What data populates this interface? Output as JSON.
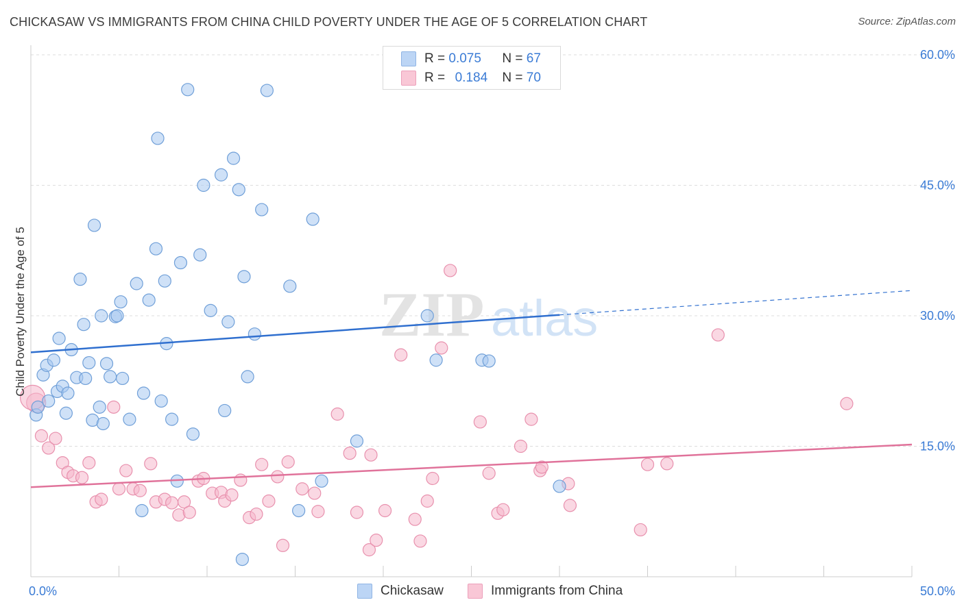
{
  "title": "CHICKASAW VS IMMIGRANTS FROM CHINA CHILD POVERTY UNDER THE AGE OF 5 CORRELATION CHART",
  "source": "Source: ZipAtlas.com",
  "legend": {
    "series1": {
      "r_label": "R =",
      "r_value": "0.075",
      "n_label": "N =",
      "n_value": "67"
    },
    "series2": {
      "r_label": "R =",
      "r_value": "0.184",
      "n_label": "N =",
      "n_value": "70"
    }
  },
  "bottom_legend": {
    "series1": "Chickasaw",
    "series2": "Immigrants from China"
  },
  "watermark": {
    "part1": "ZIP",
    "part2": "atlas"
  },
  "colors": {
    "blue_fill": "#a8c8f0",
    "blue_stroke": "#6f9fd8",
    "blue_line": "#2f6fcf",
    "pink_fill": "#f6b8cc",
    "pink_stroke": "#e890ad",
    "pink_line": "#e0729a",
    "axis_label": "#3a7bd5",
    "grid": "#dddddd"
  },
  "chart_data": {
    "type": "scatter",
    "title": "CHICKASAW VS IMMIGRANTS FROM CHINA CHILD POVERTY UNDER THE AGE OF 5 CORRELATION CHART",
    "xlabel": "",
    "ylabel": "Child Poverty Under the Age of 5",
    "xlim": [
      0,
      50
    ],
    "ylim": [
      0,
      60
    ],
    "x_tick_labels": [
      "0.0%",
      "50.0%"
    ],
    "y_ticks": [
      15,
      30,
      45,
      60
    ],
    "y_tick_labels": [
      "15.0%",
      "30.0%",
      "45.0%",
      "60.0%"
    ],
    "grid": true,
    "legend_position": "top-center",
    "series": [
      {
        "name": "Chickasaw",
        "color": "#a8c8f0",
        "trend": {
          "x": [
            0,
            30
          ],
          "y": [
            25.8,
            30.1
          ],
          "dashed_to": [
            50,
            32.9
          ]
        },
        "points": [
          [
            0.3,
            18.6
          ],
          [
            0.4,
            19.5
          ],
          [
            0.7,
            23.2
          ],
          [
            0.9,
            24.3
          ],
          [
            1.0,
            20.2
          ],
          [
            1.3,
            24.9
          ],
          [
            1.5,
            21.3
          ],
          [
            1.6,
            27.4
          ],
          [
            1.8,
            21.9
          ],
          [
            2.0,
            18.8
          ],
          [
            2.1,
            21.1
          ],
          [
            2.3,
            26.1
          ],
          [
            2.6,
            22.9
          ],
          [
            2.8,
            34.2
          ],
          [
            3.0,
            29.0
          ],
          [
            3.1,
            22.8
          ],
          [
            3.3,
            24.6
          ],
          [
            3.5,
            18.0
          ],
          [
            3.6,
            40.4
          ],
          [
            3.9,
            19.5
          ],
          [
            4.0,
            30.0
          ],
          [
            4.1,
            17.6
          ],
          [
            4.3,
            24.5
          ],
          [
            4.5,
            23.0
          ],
          [
            4.8,
            29.9
          ],
          [
            4.9,
            30.0
          ],
          [
            5.1,
            31.6
          ],
          [
            5.2,
            22.8
          ],
          [
            5.6,
            18.1
          ],
          [
            6.0,
            33.7
          ],
          [
            6.3,
            7.6
          ],
          [
            6.4,
            21.1
          ],
          [
            6.7,
            31.8
          ],
          [
            7.1,
            37.7
          ],
          [
            7.2,
            50.4
          ],
          [
            7.4,
            20.2
          ],
          [
            7.6,
            34.0
          ],
          [
            7.7,
            26.8
          ],
          [
            8.0,
            18.1
          ],
          [
            8.3,
            11.0
          ],
          [
            8.5,
            36.1
          ],
          [
            8.9,
            56.0
          ],
          [
            9.2,
            16.4
          ],
          [
            9.6,
            37.0
          ],
          [
            9.8,
            45.0
          ],
          [
            10.2,
            30.6
          ],
          [
            10.8,
            46.2
          ],
          [
            11.0,
            19.1
          ],
          [
            11.2,
            29.3
          ],
          [
            11.5,
            48.1
          ],
          [
            11.8,
            44.5
          ],
          [
            12.0,
            2.0
          ],
          [
            12.1,
            34.5
          ],
          [
            12.3,
            23.0
          ],
          [
            12.7,
            27.9
          ],
          [
            13.1,
            42.2
          ],
          [
            13.4,
            55.9
          ],
          [
            14.7,
            33.4
          ],
          [
            15.2,
            7.6
          ],
          [
            16.0,
            41.1
          ],
          [
            16.5,
            11.0
          ],
          [
            18.5,
            15.6
          ],
          [
            22.5,
            30.0
          ],
          [
            23.0,
            24.9
          ],
          [
            25.6,
            24.9
          ],
          [
            26.0,
            24.8
          ],
          [
            30.0,
            10.4
          ]
        ]
      },
      {
        "name": "Immigrants from China",
        "color": "#f6b8cc",
        "trend": {
          "x": [
            0,
            50
          ],
          "y": [
            10.3,
            15.2
          ]
        },
        "points": [
          [
            0.3,
            20.0
          ],
          [
            0.6,
            16.2
          ],
          [
            1.0,
            14.8
          ],
          [
            1.4,
            15.9
          ],
          [
            1.8,
            13.1
          ],
          [
            2.1,
            12.0
          ],
          [
            2.4,
            11.6
          ],
          [
            2.9,
            11.4
          ],
          [
            3.3,
            13.1
          ],
          [
            3.7,
            8.6
          ],
          [
            4.0,
            8.9
          ],
          [
            4.7,
            19.5
          ],
          [
            5.0,
            10.1
          ],
          [
            5.4,
            12.2
          ],
          [
            5.8,
            10.1
          ],
          [
            6.2,
            9.9
          ],
          [
            6.8,
            13.0
          ],
          [
            7.1,
            8.6
          ],
          [
            7.6,
            8.9
          ],
          [
            8.0,
            8.5
          ],
          [
            8.4,
            7.1
          ],
          [
            8.7,
            8.6
          ],
          [
            9.0,
            7.4
          ],
          [
            9.5,
            11.0
          ],
          [
            9.8,
            11.3
          ],
          [
            10.3,
            9.6
          ],
          [
            10.8,
            9.7
          ],
          [
            11.0,
            8.7
          ],
          [
            11.4,
            9.4
          ],
          [
            11.9,
            11.1
          ],
          [
            12.4,
            6.8
          ],
          [
            12.8,
            7.2
          ],
          [
            13.1,
            12.9
          ],
          [
            13.5,
            8.7
          ],
          [
            14.0,
            11.5
          ],
          [
            14.3,
            3.6
          ],
          [
            14.6,
            13.2
          ],
          [
            15.4,
            10.1
          ],
          [
            16.1,
            9.6
          ],
          [
            16.3,
            7.5
          ],
          [
            17.4,
            18.7
          ],
          [
            18.1,
            14.2
          ],
          [
            18.5,
            7.4
          ],
          [
            19.2,
            3.1
          ],
          [
            19.3,
            14.0
          ],
          [
            19.6,
            4.2
          ],
          [
            20.1,
            7.6
          ],
          [
            21.0,
            25.5
          ],
          [
            21.8,
            6.6
          ],
          [
            22.1,
            4.1
          ],
          [
            22.5,
            8.7
          ],
          [
            22.8,
            11.3
          ],
          [
            23.3,
            26.3
          ],
          [
            23.8,
            35.2
          ],
          [
            25.5,
            17.8
          ],
          [
            26.0,
            11.9
          ],
          [
            26.5,
            7.3
          ],
          [
            26.8,
            7.7
          ],
          [
            27.8,
            15.0
          ],
          [
            28.4,
            18.1
          ],
          [
            28.9,
            12.2
          ],
          [
            29.0,
            12.6
          ],
          [
            30.5,
            10.7
          ],
          [
            30.6,
            8.2
          ],
          [
            34.6,
            5.4
          ],
          [
            35.0,
            12.9
          ],
          [
            36.1,
            13.0
          ],
          [
            39.0,
            27.8
          ],
          [
            46.3,
            19.9
          ],
          [
            0.1,
            20.6
          ]
        ]
      }
    ]
  }
}
